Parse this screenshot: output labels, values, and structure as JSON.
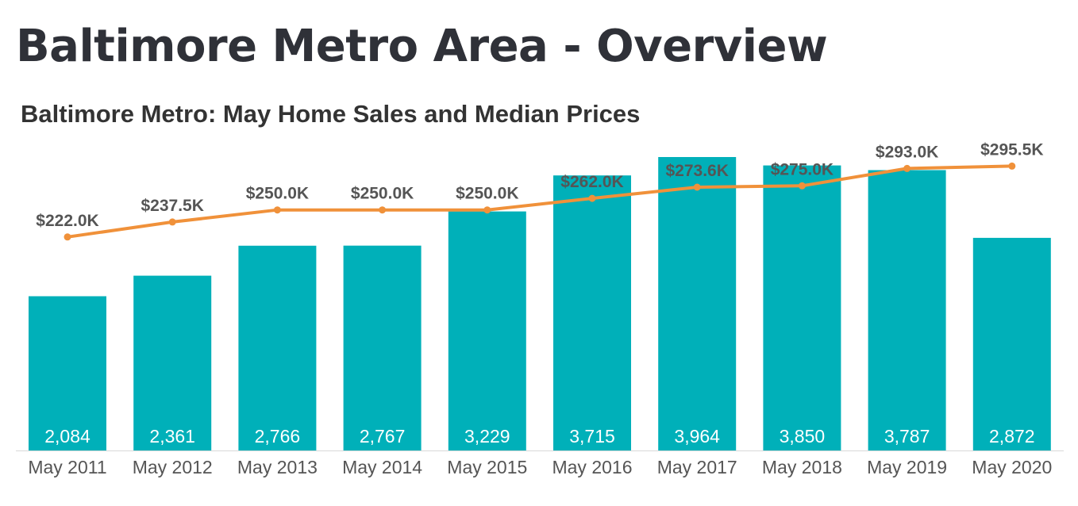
{
  "page": {
    "title": "Baltimore Metro Area - Overview"
  },
  "colors": {
    "bar": "#00b0b9",
    "line": "#f0913a",
    "axis": "#d9d9d9"
  },
  "chart_data": {
    "type": "bar",
    "title": "Baltimore Metro: May Home Sales and Median Prices",
    "xlabel": "",
    "ylabel": "",
    "grid": false,
    "legend": "none",
    "categories": [
      "May 2011",
      "May 2012",
      "May 2013",
      "May 2014",
      "May 2015",
      "May 2016",
      "May 2017",
      "May 2018",
      "May 2019",
      "May 2020"
    ],
    "series": [
      {
        "type": "bar",
        "values": [
          2084,
          2361,
          2766,
          2767,
          3229,
          3715,
          3964,
          3850,
          3787,
          2872
        ],
        "labels": [
          "2,084",
          "2,361",
          "2,766",
          "2,767",
          "3,229",
          "3,715",
          "3,964",
          "3,850",
          "3,787",
          "2,872"
        ]
      },
      {
        "type": "line",
        "values": [
          222.0,
          237.5,
          250.0,
          250.0,
          250.0,
          262.0,
          273.6,
          275.0,
          293.0,
          295.5
        ],
        "labels": [
          "$222.0K",
          "$237.5K",
          "$250.0K",
          "$250.0K",
          "$250.0K",
          "$262.0K",
          "$273.6K",
          "$275.0K",
          "$293.0K",
          "$295.5K"
        ]
      }
    ]
  }
}
